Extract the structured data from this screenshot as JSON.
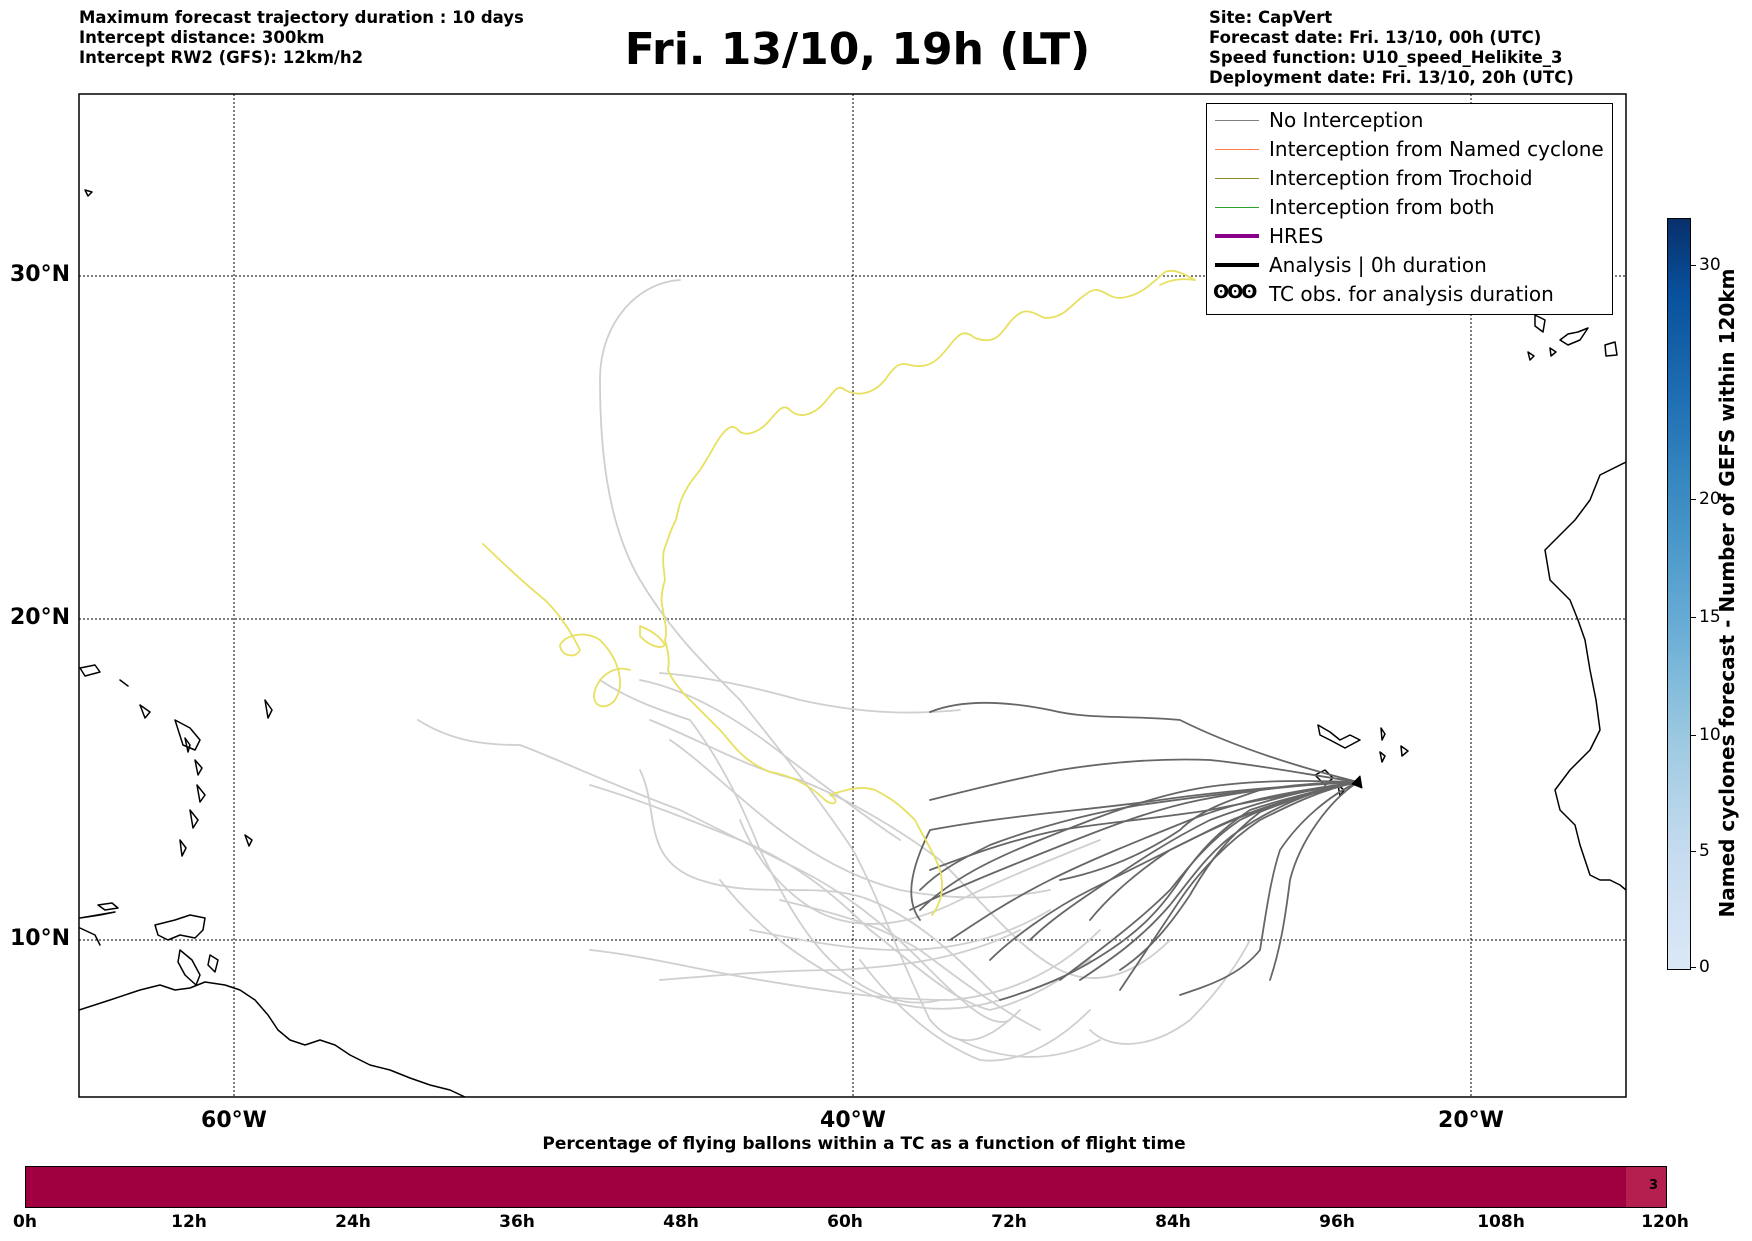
{
  "header": {
    "left_lines": [
      "Maximum forecast trajectory duration : 10 days",
      "Intercept distance: 300km",
      "Intercept RW2 (GFS):  12km/h2"
    ],
    "title": "Fri. 13/10, 19h (LT)",
    "right_lines": [
      "Site: CapVert",
      "Forecast date: Fri. 13/10, 00h (UTC)",
      "Speed function: U10_speed_Helikite_3",
      "Deployment date: Fri. 13/10, 20h (UTC)"
    ]
  },
  "map": {
    "lat_labels": [
      "30°N",
      "20°N",
      "10°N"
    ],
    "lon_labels": [
      "60°W",
      "40°W",
      "20°W"
    ],
    "site_name": "CapVert"
  },
  "legend": {
    "items": [
      {
        "label": "No Interception",
        "color": "#808080"
      },
      {
        "label": "Interception from Named cyclone",
        "color": "#ff7f50"
      },
      {
        "label": "Interception from Trochoid",
        "color": "#8b8b2a"
      },
      {
        "label": "Interception from both",
        "color": "#2ca02c"
      },
      {
        "label": "HRES",
        "color": "#8b008b"
      },
      {
        "label": "Analysis | 0h duration",
        "color": "#000000"
      },
      {
        "label": "TC obs. for analysis duration",
        "symbol": "ʘʘʘ"
      }
    ]
  },
  "colorbar": {
    "title": "Named cyclones forecast - Number of GEFS within 120km",
    "ticks": [
      "0",
      "5",
      "10",
      "15",
      "20",
      "30"
    ]
  },
  "flight_bar": {
    "title": "Percentage of flying ballons within a TC as a function of flight time",
    "ticks": [
      "0h",
      "12h",
      "24h",
      "36h",
      "48h",
      "60h",
      "72h",
      "84h",
      "96h",
      "108h",
      "120h"
    ],
    "last_cell_count": "3",
    "color": "#a10040"
  }
}
